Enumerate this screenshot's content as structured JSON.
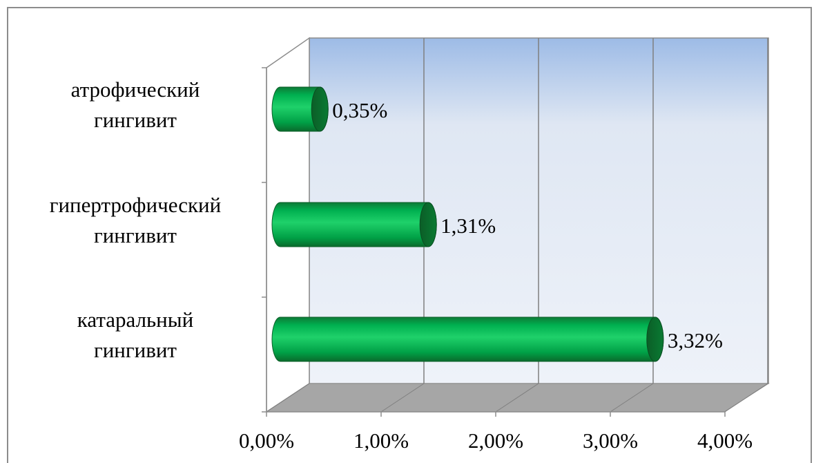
{
  "chart_data": {
    "type": "bar",
    "orientation": "horizontal",
    "style": "3d-cylinder",
    "categories": [
      [
        "атрофический",
        "гингивит"
      ],
      [
        "гипертрофический",
        "гингивит"
      ],
      [
        "катаральный",
        "гингивит"
      ]
    ],
    "values": [
      0.35,
      1.31,
      3.32
    ],
    "data_labels": [
      "0,35%",
      "1,31%",
      "3,32%"
    ],
    "xlim": [
      0,
      4
    ],
    "xticks": [
      0,
      1,
      2,
      3,
      4
    ],
    "xtick_labels": [
      "0,00%",
      "1,00%",
      "2,00%",
      "3,00%",
      "4,00%"
    ],
    "title": "",
    "xlabel": "",
    "ylabel": "",
    "grid": true,
    "legend": false,
    "colors": {
      "bar": "#00b050",
      "bar_dark": "#006b2e",
      "wall_top": "#9dbbe6",
      "wall_bottom": "#ffffff",
      "floor": "#a6a6a6",
      "grid": "#7f7f7f"
    }
  }
}
